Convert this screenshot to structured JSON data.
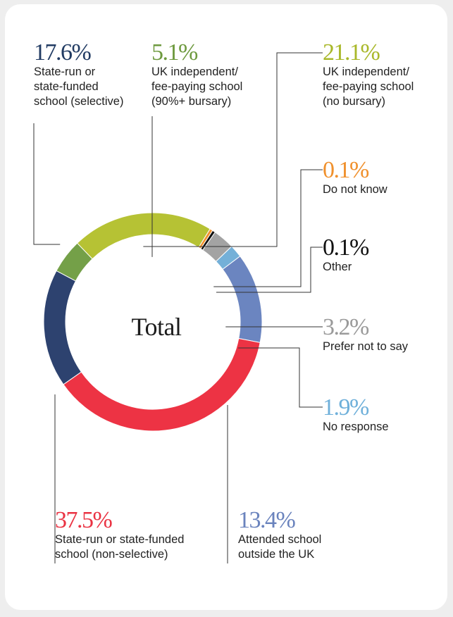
{
  "chart_data": {
    "type": "donut",
    "center_label": "Total",
    "series": [
      {
        "pct": "17.6%",
        "label": "State-run or\nstate-funded\nschool (selective)",
        "value": 17.6,
        "color": "#2d426f"
      },
      {
        "pct": "5.1%",
        "label": "UK independent/\nfee-paying school\n(90%+ bursary)",
        "value": 5.1,
        "color": "#74a048"
      },
      {
        "pct": "21.1%",
        "label": "UK independent/\nfee-paying school\n(no bursary)",
        "value": 21.1,
        "color": "#b6c234"
      },
      {
        "pct": "0.1%",
        "label": "Do not know",
        "value": 0.1,
        "color": "#f2922f"
      },
      {
        "pct": "0.1%",
        "label": "Other",
        "value": 0.1,
        "color": "#111111"
      },
      {
        "pct": "3.2%",
        "label": "Prefer not to say",
        "value": 3.2,
        "color": "#a3a3a3"
      },
      {
        "pct": "1.9%",
        "label": "No response",
        "value": 1.9,
        "color": "#74b0d8"
      },
      {
        "pct": "13.4%",
        "label": "Attended school\noutside the UK",
        "value": 13.4,
        "color": "#6b85c0"
      },
      {
        "pct": "37.5%",
        "label": "State-run or state-funded\nschool (non-selective)",
        "value": 37.5,
        "color": "#ed3344"
      }
    ]
  }
}
